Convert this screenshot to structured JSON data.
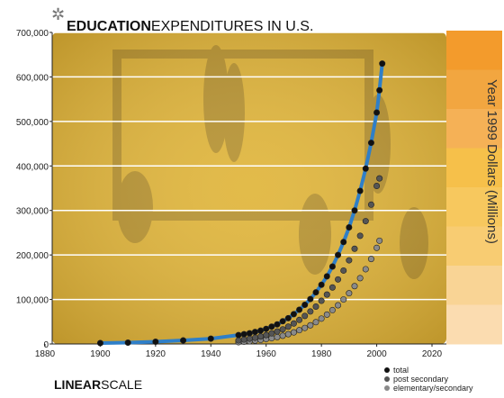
{
  "chart_data": {
    "type": "scatter",
    "title_bold": "EDUCATION",
    "title_light": "EXPENDITURES IN U.S.",
    "ylabel": "Year 1999 Dollars (Millions)",
    "scale_bold": "LINEAR",
    "scale_light": "SCALE",
    "xlim": [
      1880,
      2020
    ],
    "ylim": [
      0,
      700000
    ],
    "x_ticks": [
      "1880",
      "1900",
      "1920",
      "1940",
      "1960",
      "1980",
      "2000",
      "2020"
    ],
    "y_ticks": [
      "0",
      "100,000",
      "200,000",
      "300,000",
      "400,000",
      "500,000",
      "600,000",
      "700,000"
    ],
    "colors": {
      "background": "#e0b53a",
      "total": "#111111",
      "post_secondary": "#555555",
      "elementary_secondary": "#8a8a8a",
      "trend": "#2f7fc8",
      "side_bands": [
        "#f39b2c",
        "#f2a640",
        "#f5b156",
        "#f6c04a",
        "#f7c85e",
        "#f8cc72",
        "#f9d495",
        "#fbdcb0"
      ]
    },
    "series": [
      {
        "name": "total",
        "points": [
          [
            1900,
            2000
          ],
          [
            1910,
            3000
          ],
          [
            1920,
            5000
          ],
          [
            1930,
            8000
          ],
          [
            1940,
            12000
          ],
          [
            1950,
            20000
          ],
          [
            1952,
            22000
          ],
          [
            1954,
            24000
          ],
          [
            1956,
            27000
          ],
          [
            1958,
            30000
          ],
          [
            1960,
            34000
          ],
          [
            1962,
            39000
          ],
          [
            1964,
            44000
          ],
          [
            1966,
            51000
          ],
          [
            1968,
            58000
          ],
          [
            1970,
            67000
          ],
          [
            1972,
            77000
          ],
          [
            1974,
            88000
          ],
          [
            1976,
            101000
          ],
          [
            1978,
            116000
          ],
          [
            1980,
            133000
          ],
          [
            1982,
            152000
          ],
          [
            1984,
            174000
          ],
          [
            1986,
            200000
          ],
          [
            1988,
            229000
          ],
          [
            1990,
            262000
          ],
          [
            1992,
            300000
          ],
          [
            1994,
            344000
          ],
          [
            1996,
            394000
          ],
          [
            1998,
            452000
          ],
          [
            2000,
            520000
          ],
          [
            2001,
            570000
          ],
          [
            2002,
            630000
          ]
        ]
      },
      {
        "name": "post secondary",
        "points": [
          [
            1950,
            8000
          ],
          [
            1952,
            10000
          ],
          [
            1954,
            12000
          ],
          [
            1956,
            14000
          ],
          [
            1958,
            17000
          ],
          [
            1960,
            20000
          ],
          [
            1962,
            24000
          ],
          [
            1964,
            28000
          ],
          [
            1966,
            33000
          ],
          [
            1968,
            39000
          ],
          [
            1970,
            46000
          ],
          [
            1972,
            54000
          ],
          [
            1974,
            63000
          ],
          [
            1976,
            73000
          ],
          [
            1978,
            84000
          ],
          [
            1980,
            97000
          ],
          [
            1982,
            111000
          ],
          [
            1984,
            127000
          ],
          [
            1986,
            145000
          ],
          [
            1988,
            165000
          ],
          [
            1990,
            188000
          ],
          [
            1992,
            214000
          ],
          [
            1994,
            243000
          ],
          [
            1996,
            276000
          ],
          [
            1998,
            313000
          ],
          [
            2000,
            355000
          ],
          [
            2001,
            372000
          ]
        ]
      },
      {
        "name": "elementary/secondary",
        "points": [
          [
            1950,
            4000
          ],
          [
            1952,
            5000
          ],
          [
            1954,
            6000
          ],
          [
            1956,
            7500
          ],
          [
            1958,
            9000
          ],
          [
            1960,
            11000
          ],
          [
            1962,
            13000
          ],
          [
            1964,
            15500
          ],
          [
            1966,
            18500
          ],
          [
            1968,
            22000
          ],
          [
            1970,
            26000
          ],
          [
            1972,
            31000
          ],
          [
            1974,
            36000
          ],
          [
            1976,
            42000
          ],
          [
            1978,
            49000
          ],
          [
            1980,
            57000
          ],
          [
            1982,
            66000
          ],
          [
            1984,
            76000
          ],
          [
            1986,
            87000
          ],
          [
            1988,
            100000
          ],
          [
            1990,
            114000
          ],
          [
            1992,
            130000
          ],
          [
            1994,
            148000
          ],
          [
            1996,
            168000
          ],
          [
            1998,
            191000
          ],
          [
            2000,
            216000
          ],
          [
            2001,
            232000
          ]
        ]
      }
    ]
  }
}
